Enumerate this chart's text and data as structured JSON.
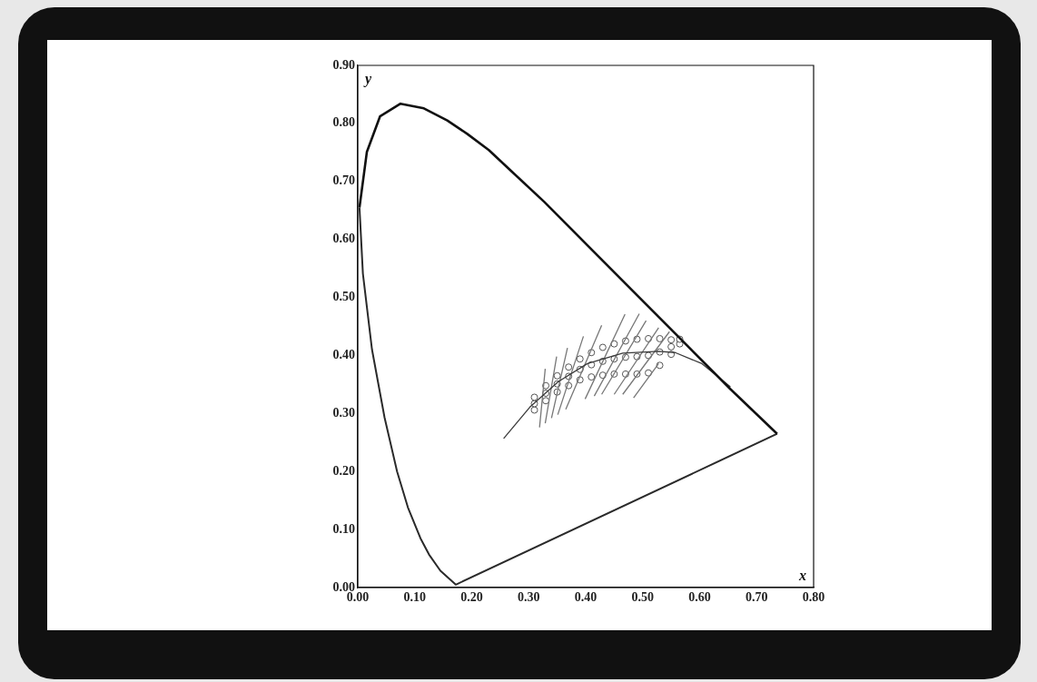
{
  "chart_data": {
    "type": "line",
    "xlabel": "x",
    "ylabel": "y",
    "xlim": [
      0,
      0.8
    ],
    "ylim": [
      0,
      0.9
    ],
    "xticks": [
      {
        "value": 0,
        "label": "0.00"
      },
      {
        "value": 0.1,
        "label": "0.10"
      },
      {
        "value": 0.2,
        "label": "0.20"
      },
      {
        "value": 0.3,
        "label": "0.30"
      },
      {
        "value": 0.4,
        "label": "0.40"
      },
      {
        "value": 0.5,
        "label": "0.50"
      },
      {
        "value": 0.6,
        "label": "0.60"
      },
      {
        "value": 0.7,
        "label": "0.70"
      },
      {
        "value": 0.8,
        "label": "0.80"
      }
    ],
    "yticks": [
      {
        "value": 0,
        "label": "0.00"
      },
      {
        "value": 0.1,
        "label": "0.10"
      },
      {
        "value": 0.2,
        "label": "0.20"
      },
      {
        "value": 0.3,
        "label": "0.30"
      },
      {
        "value": 0.4,
        "label": "0.40"
      },
      {
        "value": 0.5,
        "label": "0.50"
      },
      {
        "value": 0.6,
        "label": "0.60"
      },
      {
        "value": 0.7,
        "label": "0.70"
      },
      {
        "value": 0.8,
        "label": "0.80"
      },
      {
        "value": 0.9,
        "label": "0.90"
      }
    ],
    "grid": false,
    "legend": false,
    "marker": "none",
    "line_style": "solid",
    "series": [
      {
        "color": "#111111",
        "x": [
          0.003,
          0.016,
          0.039,
          0.075,
          0.116,
          0.157,
          0.192,
          0.23,
          0.267,
          0.327,
          0.403,
          0.491,
          0.566,
          0.654,
          0.736
        ],
        "values": [
          0.655,
          0.751,
          0.812,
          0.834,
          0.826,
          0.805,
          0.782,
          0.754,
          0.72,
          0.665,
          0.59,
          0.503,
          0.429,
          0.342,
          0.265
        ]
      },
      {
        "color": "#2a2a2a",
        "x": [
          0.003,
          0.009,
          0.025,
          0.047,
          0.069,
          0.088,
          0.11,
          0.125,
          0.145,
          0.172,
          0.736
        ],
        "values": [
          0.655,
          0.541,
          0.41,
          0.293,
          0.2,
          0.138,
          0.085,
          0.057,
          0.029,
          0.005,
          0.265
        ]
      },
      {
        "color": "#3a3a3a",
        "x": [
          0.256,
          0.302,
          0.352,
          0.403,
          0.465,
          0.528,
          0.557,
          0.604,
          0.654
        ],
        "values": [
          0.257,
          0.311,
          0.355,
          0.386,
          0.404,
          0.407,
          0.405,
          0.386,
          0.346
        ]
      },
      {
        "color": "#777777",
        "x": [
          0.319,
          0.329,
          null,
          0.329,
          0.349,
          null,
          0.34,
          0.368,
          null,
          0.351,
          0.396,
          null,
          0.365,
          0.428,
          null,
          0.399,
          0.469,
          null,
          0.415,
          0.494,
          null,
          0.428,
          0.506,
          null,
          0.45,
          0.528,
          null,
          0.465,
          0.547,
          null,
          0.484,
          0.528
        ],
        "values": [
          0.276,
          0.377,
          null,
          0.283,
          0.398,
          null,
          0.292,
          0.413,
          null,
          0.298,
          0.433,
          null,
          0.307,
          0.452,
          null,
          0.325,
          0.471,
          null,
          0.33,
          0.472,
          null,
          0.333,
          0.46,
          null,
          0.333,
          0.448,
          null,
          0.333,
          0.441,
          null,
          0.327,
          0.386
        ]
      },
      {
        "type": "scatter",
        "color": "#555555",
        "marker": "circle",
        "x": [
          0.31,
          0.31,
          0.31,
          0.33,
          0.33,
          0.33,
          0.35,
          0.35,
          0.35,
          0.37,
          0.37,
          0.37,
          0.39,
          0.39,
          0.39,
          0.41,
          0.41,
          0.41,
          0.43,
          0.43,
          0.43,
          0.45,
          0.45,
          0.45,
          0.47,
          0.47,
          0.47,
          0.49,
          0.49,
          0.49,
          0.51,
          0.51,
          0.51,
          0.53,
          0.53,
          0.53,
          0.55,
          0.55,
          0.55,
          0.565,
          0.565
        ],
        "values": [
          0.306,
          0.317,
          0.328,
          0.322,
          0.335,
          0.348,
          0.337,
          0.351,
          0.365,
          0.348,
          0.364,
          0.38,
          0.358,
          0.376,
          0.394,
          0.363,
          0.384,
          0.405,
          0.366,
          0.39,
          0.414,
          0.368,
          0.394,
          0.42,
          0.368,
          0.397,
          0.425,
          0.368,
          0.398,
          0.428,
          0.37,
          0.4,
          0.429,
          0.383,
          0.406,
          0.429,
          0.402,
          0.415,
          0.427,
          0.42,
          0.428
        ]
      }
    ]
  }
}
